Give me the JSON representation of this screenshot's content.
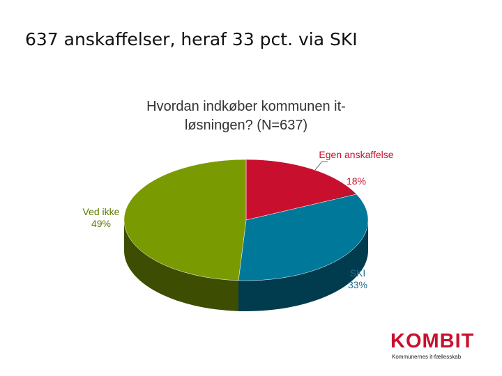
{
  "slide": {
    "title": "637 anskaffelser, heraf 33 pct. via SKI"
  },
  "chart_data": {
    "type": "pie",
    "title": "Hvordan indkøber kommunen it-løsningen? (N=637)",
    "categories": [
      "Egen anskaffelse",
      "SKI",
      "Ved ikke"
    ],
    "values": [
      18,
      33,
      49
    ],
    "value_labels": [
      "18%",
      "33%",
      "49%"
    ],
    "colors": [
      "#c8102e",
      "#00789a",
      "#7a9a01"
    ]
  },
  "logo": {
    "name": "KOMBIT",
    "tagline": "Kommunernes it-fællesskab"
  }
}
